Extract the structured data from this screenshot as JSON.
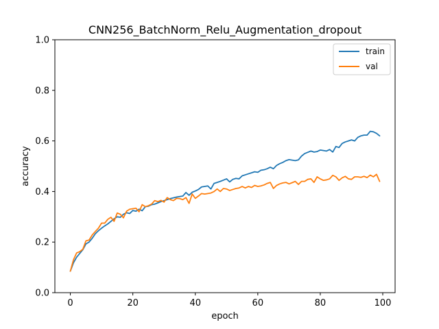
{
  "chart_data": {
    "type": "line",
    "title": "CNN256_BatchNorm_Relu_Augmentation_dropout",
    "xlabel": "epoch",
    "ylabel": "accuracy",
    "xlim": [
      -4.95,
      103.95
    ],
    "ylim": [
      0.0,
      1.0
    ],
    "xticks": [
      0,
      20,
      40,
      60,
      80,
      100
    ],
    "yticks": [
      0.0,
      0.2,
      0.4,
      0.6,
      0.8,
      1.0
    ],
    "xtick_labels": [
      "0",
      "20",
      "40",
      "60",
      "80",
      "100"
    ],
    "ytick_labels": [
      "0.0",
      "0.2",
      "0.4",
      "0.6",
      "0.8",
      "1.0"
    ],
    "grid": false,
    "legend_position": "top-right",
    "series": [
      {
        "name": "train",
        "color": "#1f77b4",
        "x": [
          0,
          1,
          2,
          3,
          4,
          5,
          6,
          7,
          8,
          9,
          10,
          11,
          12,
          13,
          14,
          15,
          16,
          17,
          18,
          19,
          20,
          21,
          22,
          23,
          24,
          25,
          26,
          27,
          28,
          29,
          30,
          31,
          32,
          33,
          34,
          35,
          36,
          37,
          38,
          39,
          40,
          41,
          42,
          43,
          44,
          45,
          46,
          47,
          48,
          49,
          50,
          51,
          52,
          53,
          54,
          55,
          56,
          57,
          58,
          59,
          60,
          61,
          62,
          63,
          64,
          65,
          66,
          67,
          68,
          69,
          70,
          71,
          72,
          73,
          74,
          75,
          76,
          77,
          78,
          79,
          80,
          81,
          82,
          83,
          84,
          85,
          86,
          87,
          88,
          89,
          90,
          91,
          92,
          93,
          94,
          95,
          96,
          97,
          98,
          99
        ],
        "values": [
          0.085,
          0.118,
          0.14,
          0.155,
          0.17,
          0.193,
          0.2,
          0.215,
          0.233,
          0.245,
          0.255,
          0.264,
          0.272,
          0.282,
          0.292,
          0.3,
          0.298,
          0.31,
          0.316,
          0.313,
          0.325,
          0.322,
          0.33,
          0.324,
          0.34,
          0.342,
          0.348,
          0.35,
          0.355,
          0.36,
          0.364,
          0.368,
          0.372,
          0.375,
          0.378,
          0.38,
          0.382,
          0.396,
          0.385,
          0.397,
          0.402,
          0.408,
          0.418,
          0.42,
          0.422,
          0.41,
          0.432,
          0.436,
          0.44,
          0.445,
          0.45,
          0.438,
          0.448,
          0.452,
          0.45,
          0.462,
          0.466,
          0.47,
          0.474,
          0.478,
          0.476,
          0.484,
          0.486,
          0.49,
          0.496,
          0.49,
          0.503,
          0.51,
          0.515,
          0.522,
          0.526,
          0.524,
          0.522,
          0.525,
          0.54,
          0.55,
          0.555,
          0.56,
          0.556,
          0.558,
          0.564,
          0.562,
          0.56,
          0.566,
          0.556,
          0.578,
          0.574,
          0.59,
          0.596,
          0.6,
          0.604,
          0.6,
          0.614,
          0.62,
          0.623,
          0.623,
          0.638,
          0.636,
          0.63,
          0.62
        ]
      },
      {
        "name": "val",
        "color": "#ff7f0e",
        "x": [
          0,
          1,
          2,
          3,
          4,
          5,
          6,
          7,
          8,
          9,
          10,
          11,
          12,
          13,
          14,
          15,
          16,
          17,
          18,
          19,
          20,
          21,
          22,
          23,
          24,
          25,
          26,
          27,
          28,
          29,
          30,
          31,
          32,
          33,
          34,
          35,
          36,
          37,
          38,
          39,
          40,
          41,
          42,
          43,
          44,
          45,
          46,
          47,
          48,
          49,
          50,
          51,
          52,
          53,
          54,
          55,
          56,
          57,
          58,
          59,
          60,
          61,
          62,
          63,
          64,
          65,
          66,
          67,
          68,
          69,
          70,
          71,
          72,
          73,
          74,
          75,
          76,
          77,
          78,
          79,
          80,
          81,
          82,
          83,
          84,
          85,
          86,
          87,
          88,
          89,
          90,
          91,
          92,
          93,
          94,
          95,
          96,
          97,
          98,
          99
        ],
        "values": [
          0.085,
          0.13,
          0.157,
          0.162,
          0.172,
          0.205,
          0.208,
          0.228,
          0.242,
          0.255,
          0.275,
          0.275,
          0.29,
          0.298,
          0.282,
          0.315,
          0.31,
          0.296,
          0.322,
          0.33,
          0.332,
          0.334,
          0.32,
          0.348,
          0.34,
          0.344,
          0.35,
          0.364,
          0.36,
          0.365,
          0.358,
          0.376,
          0.368,
          0.364,
          0.373,
          0.372,
          0.368,
          0.376,
          0.353,
          0.39,
          0.373,
          0.382,
          0.392,
          0.39,
          0.392,
          0.394,
          0.4,
          0.41,
          0.4,
          0.412,
          0.41,
          0.404,
          0.408,
          0.412,
          0.414,
          0.42,
          0.414,
          0.42,
          0.416,
          0.424,
          0.42,
          0.422,
          0.426,
          0.432,
          0.436,
          0.412,
          0.424,
          0.43,
          0.434,
          0.436,
          0.43,
          0.435,
          0.44,
          0.428,
          0.44,
          0.44,
          0.448,
          0.45,
          0.436,
          0.458,
          0.45,
          0.444,
          0.446,
          0.45,
          0.464,
          0.458,
          0.444,
          0.454,
          0.46,
          0.45,
          0.448,
          0.458,
          0.458,
          0.456,
          0.46,
          0.455,
          0.465,
          0.458,
          0.468,
          0.44
        ]
      }
    ]
  }
}
